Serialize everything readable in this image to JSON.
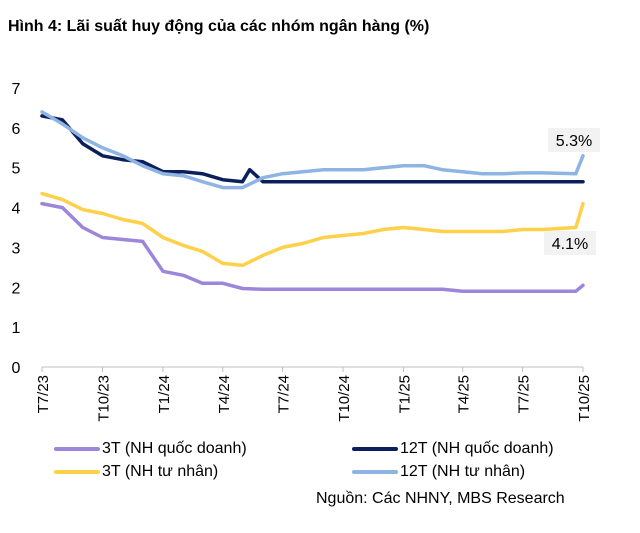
{
  "title": "Hình 4: Lãi suất huy động của các nhóm ngân hàng (%)",
  "source": "Nguồn: Các NHNY, MBS Research",
  "chart_data": {
    "type": "line",
    "ylim": [
      0,
      7
    ],
    "yticks": [
      "0",
      "1",
      "2",
      "3",
      "4",
      "5",
      "6",
      "7"
    ],
    "xlim": [
      "2023-07-01",
      "2025-10-01"
    ],
    "xticks": [
      {
        "date": "2023-07-01",
        "label": "T7/23"
      },
      {
        "date": "2023-10-01",
        "label": "T10/23"
      },
      {
        "date": "2024-01-01",
        "label": "T1/24"
      },
      {
        "date": "2024-04-01",
        "label": "T4/24"
      },
      {
        "date": "2024-07-01",
        "label": "T7/24"
      },
      {
        "date": "2024-10-01",
        "label": "T10/24"
      },
      {
        "date": "2025-01-01",
        "label": "T1/25"
      },
      {
        "date": "2025-04-01",
        "label": "T4/25"
      },
      {
        "date": "2025-07-01",
        "label": "T7/25"
      },
      {
        "date": "2025-10-01",
        "label": "T10/25"
      }
    ],
    "grid": false,
    "legend_position": "bottom",
    "annotations": [
      {
        "series": "12T (NH tư nhân)",
        "text": "5.3%"
      },
      {
        "series": "3T (NH tư nhân)",
        "text": "4.1%"
      }
    ],
    "series": [
      {
        "name": "3T (NH quốc doanh)",
        "color": "#9b86dc",
        "x": [
          "2023-07-01",
          "2023-08-01",
          "2023-09-01",
          "2023-10-01",
          "2023-11-01",
          "2023-12-01",
          "2024-01-01",
          "2024-02-01",
          "2024-03-01",
          "2024-04-01",
          "2024-05-01",
          "2024-06-01",
          "2024-09-01",
          "2024-12-01",
          "2025-03-01",
          "2025-04-01",
          "2025-07-01",
          "2025-09-20",
          "2025-10-01"
        ],
        "y": [
          4.1,
          4.0,
          3.5,
          3.25,
          3.2,
          3.15,
          2.4,
          2.3,
          2.1,
          2.1,
          1.97,
          1.95,
          1.95,
          1.95,
          1.95,
          1.9,
          1.9,
          1.9,
          2.05
        ]
      },
      {
        "name": "12T (NH quốc doanh)",
        "color": "#0b1f5c",
        "x": [
          "2023-07-01",
          "2023-08-01",
          "2023-09-01",
          "2023-10-01",
          "2023-11-01",
          "2023-12-01",
          "2024-01-01",
          "2024-02-01",
          "2024-03-01",
          "2024-04-01",
          "2024-05-01",
          "2024-05-12",
          "2024-06-01",
          "2025-10-01"
        ],
        "y": [
          6.3,
          6.2,
          5.6,
          5.3,
          5.2,
          5.15,
          4.9,
          4.9,
          4.85,
          4.7,
          4.65,
          4.95,
          4.65,
          4.65
        ]
      },
      {
        "name": "3T (NH tư nhân)",
        "color": "#ffd04a",
        "x": [
          "2023-07-01",
          "2023-08-01",
          "2023-09-01",
          "2023-10-01",
          "2023-11-01",
          "2023-12-01",
          "2024-01-01",
          "2024-02-01",
          "2024-03-01",
          "2024-04-01",
          "2024-05-01",
          "2024-06-01",
          "2024-07-01",
          "2024-08-01",
          "2024-09-01",
          "2024-10-01",
          "2024-11-01",
          "2024-12-01",
          "2025-01-01",
          "2025-02-01",
          "2025-03-01",
          "2025-04-01",
          "2025-05-01",
          "2025-06-01",
          "2025-07-01",
          "2025-08-01",
          "2025-09-20",
          "2025-10-01"
        ],
        "y": [
          4.35,
          4.2,
          3.95,
          3.85,
          3.7,
          3.6,
          3.25,
          3.05,
          2.9,
          2.6,
          2.55,
          2.8,
          3.0,
          3.1,
          3.25,
          3.3,
          3.35,
          3.45,
          3.5,
          3.45,
          3.4,
          3.4,
          3.4,
          3.4,
          3.45,
          3.45,
          3.5,
          4.1
        ]
      },
      {
        "name": "12T (NH tư nhân)",
        "color": "#8db4e2",
        "x": [
          "2023-07-01",
          "2023-08-01",
          "2023-09-01",
          "2023-10-01",
          "2023-11-01",
          "2023-12-01",
          "2024-01-01",
          "2024-02-01",
          "2024-03-01",
          "2024-04-01",
          "2024-05-01",
          "2024-06-01",
          "2024-07-01",
          "2024-08-01",
          "2024-09-01",
          "2024-10-01",
          "2024-11-01",
          "2024-12-01",
          "2025-01-01",
          "2025-02-01",
          "2025-03-01",
          "2025-04-01",
          "2025-05-01",
          "2025-06-01",
          "2025-07-01",
          "2025-08-01",
          "2025-09-20",
          "2025-10-01"
        ],
        "y": [
          6.4,
          6.1,
          5.75,
          5.5,
          5.3,
          5.05,
          4.85,
          4.8,
          4.65,
          4.5,
          4.5,
          4.75,
          4.85,
          4.9,
          4.95,
          4.95,
          4.95,
          5.0,
          5.05,
          5.05,
          4.95,
          4.9,
          4.85,
          4.85,
          4.87,
          4.87,
          4.85,
          5.3
        ]
      }
    ]
  }
}
